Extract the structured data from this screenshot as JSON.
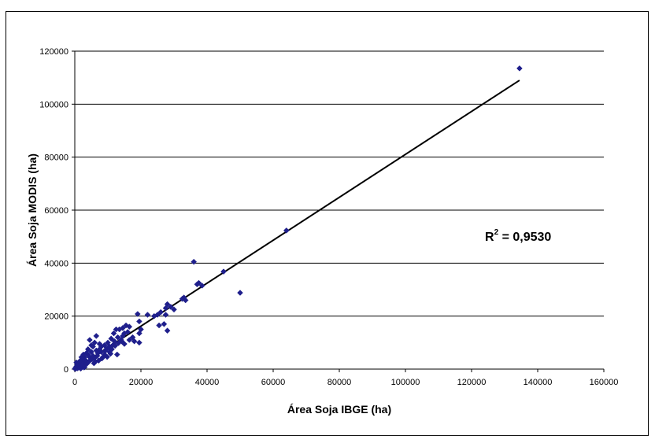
{
  "chart_data": {
    "type": "scatter",
    "title": "",
    "xlabel": "Área Soja IBGE (ha)",
    "ylabel": "Área Soja MODIS (ha)",
    "xlim": [
      0,
      160000
    ],
    "ylim": [
      0,
      120000
    ],
    "xticks": [
      "0",
      "20000",
      "40000",
      "60000",
      "80000",
      "100000",
      "120000",
      "140000",
      "160000"
    ],
    "yticks": [
      "0",
      "20000",
      "40000",
      "60000",
      "80000",
      "100000",
      "120000"
    ],
    "grid": "horizontal",
    "marker_color": "#1F1F8C",
    "line_color": "#000000",
    "annotation": {
      "base": "R",
      "sup": "2",
      "text": " = 0,9530"
    },
    "trendline": {
      "x": [
        0,
        134500
      ],
      "y": [
        0,
        109000
      ]
    },
    "series": [
      {
        "points": [
          [
            134500,
            113500
          ],
          [
            64000,
            52300
          ],
          [
            45000,
            36800
          ],
          [
            50000,
            28800
          ],
          [
            36000,
            40500
          ],
          [
            37500,
            32500
          ],
          [
            38500,
            31500
          ],
          [
            37000,
            32000
          ],
          [
            33000,
            27000
          ],
          [
            32500,
            26500
          ],
          [
            33500,
            26000
          ],
          [
            28000,
            24500
          ],
          [
            29000,
            23500
          ],
          [
            27500,
            23000
          ],
          [
            30000,
            22500
          ],
          [
            27000,
            17000
          ],
          [
            28000,
            14500
          ],
          [
            27500,
            20500
          ],
          [
            26000,
            21500
          ],
          [
            25000,
            20500
          ],
          [
            25500,
            16500
          ],
          [
            24000,
            20000
          ],
          [
            22000,
            20500
          ],
          [
            19000,
            20800
          ],
          [
            19500,
            18000
          ],
          [
            20000,
            15000
          ],
          [
            19500,
            13500
          ],
          [
            18000,
            10500
          ],
          [
            19500,
            10000
          ],
          [
            16500,
            16000
          ],
          [
            15500,
            16500
          ],
          [
            16000,
            14000
          ],
          [
            15000,
            13500
          ],
          [
            14500,
            15500
          ],
          [
            13500,
            15000
          ],
          [
            12500,
            15000
          ],
          [
            13000,
            12000
          ],
          [
            14000,
            11000
          ],
          [
            15000,
            9500
          ],
          [
            14500,
            12500
          ],
          [
            12000,
            10500
          ],
          [
            11500,
            9000
          ],
          [
            11000,
            11500
          ],
          [
            10500,
            8500
          ],
          [
            10000,
            10000
          ],
          [
            10500,
            6500
          ],
          [
            9500,
            7500
          ],
          [
            9000,
            9000
          ],
          [
            9000,
            5500
          ],
          [
            8500,
            4500
          ],
          [
            8000,
            8500
          ],
          [
            8000,
            6500
          ],
          [
            7500,
            7500
          ],
          [
            7500,
            9500
          ],
          [
            7000,
            6000
          ],
          [
            6500,
            12500
          ],
          [
            6000,
            10000
          ],
          [
            6500,
            7000
          ],
          [
            5500,
            8500
          ],
          [
            5000,
            9000
          ],
          [
            5500,
            5000
          ],
          [
            5000,
            6500
          ],
          [
            4500,
            4500
          ],
          [
            4500,
            11000
          ],
          [
            4000,
            7500
          ],
          [
            4000,
            5500
          ],
          [
            3500,
            6000
          ],
          [
            3000,
            4500
          ],
          [
            3000,
            2500
          ],
          [
            3500,
            3000
          ],
          [
            2500,
            3500
          ],
          [
            2500,
            1500
          ],
          [
            2000,
            2500
          ],
          [
            2000,
            4500
          ],
          [
            1500,
            1500
          ],
          [
            1500,
            3000
          ],
          [
            1000,
            500
          ],
          [
            1000,
            2000
          ],
          [
            500,
            1000
          ],
          [
            500,
            2500
          ],
          [
            300,
            200
          ],
          [
            200,
            500
          ],
          [
            100,
            100
          ],
          [
            800,
            300
          ],
          [
            1200,
            800
          ],
          [
            1800,
            200
          ],
          [
            2200,
            1000
          ],
          [
            2800,
            600
          ],
          [
            3200,
            1800
          ],
          [
            3800,
            2200
          ],
          [
            4200,
            2800
          ],
          [
            4800,
            3500
          ],
          [
            5200,
            3800
          ],
          [
            6000,
            4200
          ],
          [
            6800,
            5000
          ],
          [
            7200,
            3200
          ],
          [
            8200,
            4000
          ],
          [
            9200,
            6800
          ],
          [
            10200,
            8200
          ],
          [
            11200,
            7500
          ],
          [
            12200,
            8800
          ],
          [
            13200,
            9800
          ],
          [
            14200,
            10500
          ],
          [
            16500,
            11000
          ],
          [
            17500,
            12000
          ],
          [
            11800,
            13500
          ],
          [
            12800,
            5500
          ],
          [
            10800,
            5800
          ],
          [
            9800,
            4600
          ],
          [
            6200,
            2800
          ],
          [
            5800,
            2200
          ],
          [
            3000,
            800
          ],
          [
            1400,
            600
          ],
          [
            700,
            1600
          ],
          [
            2600,
            5500
          ]
        ]
      }
    ]
  }
}
